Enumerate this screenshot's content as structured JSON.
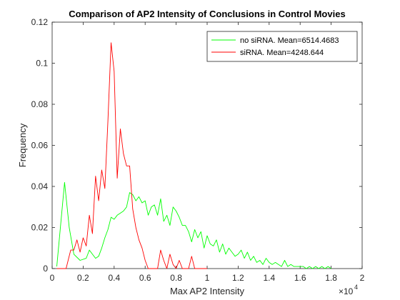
{
  "chart_data": {
    "type": "line",
    "title": "Comparison of AP2 Intensity of Conclusions in Control Movies",
    "xlabel": "Max AP2 Intensity",
    "ylabel": "Frequency",
    "x_multiplier_label": "×10",
    "x_multiplier_exponent": "4",
    "xlim": [
      0,
      2
    ],
    "ylim": [
      0,
      0.12
    ],
    "x_ticks": [
      "0",
      "0.2",
      "0.4",
      "0.6",
      "0.8",
      "1",
      "1.2",
      "1.4",
      "1.6",
      "1.8",
      "2"
    ],
    "y_ticks": [
      "0",
      "0.02",
      "0.04",
      "0.06",
      "0.08",
      "0.1",
      "0.12"
    ],
    "grid": false,
    "legend_position": "top-right",
    "series": [
      {
        "name": "no siRNA. Mean=6514.4683",
        "color": "#00ff00",
        "x": [
          0.03,
          0.08,
          0.11,
          0.14,
          0.18,
          0.22,
          0.24,
          0.26,
          0.28,
          0.3,
          0.32,
          0.34,
          0.36,
          0.38,
          0.4,
          0.42,
          0.44,
          0.46,
          0.48,
          0.5,
          0.52,
          0.54,
          0.56,
          0.58,
          0.6,
          0.62,
          0.64,
          0.66,
          0.68,
          0.7,
          0.72,
          0.74,
          0.76,
          0.78,
          0.8,
          0.82,
          0.84,
          0.86,
          0.88,
          0.9,
          0.92,
          0.94,
          0.96,
          0.98,
          1.0,
          1.02,
          1.04,
          1.06,
          1.08,
          1.1,
          1.12,
          1.14,
          1.16,
          1.18,
          1.2,
          1.22,
          1.24,
          1.26,
          1.28,
          1.3,
          1.32,
          1.34,
          1.36,
          1.38,
          1.4,
          1.42,
          1.44,
          1.46,
          1.48,
          1.5,
          1.52,
          1.54,
          1.56,
          1.58,
          1.6,
          1.62,
          1.64,
          1.66,
          1.68,
          1.7,
          1.72,
          1.74,
          1.76,
          1.78,
          1.8
        ],
        "y": [
          0.001,
          0.042,
          0.02,
          0.007,
          0.004,
          0.005,
          0.009,
          0.007,
          0.005,
          0.006,
          0.01,
          0.015,
          0.019,
          0.025,
          0.024,
          0.026,
          0.027,
          0.028,
          0.03,
          0.037,
          0.036,
          0.033,
          0.035,
          0.032,
          0.033,
          0.026,
          0.03,
          0.031,
          0.026,
          0.034,
          0.023,
          0.026,
          0.021,
          0.03,
          0.028,
          0.025,
          0.021,
          0.021,
          0.018,
          0.013,
          0.019,
          0.015,
          0.018,
          0.01,
          0.016,
          0.012,
          0.011,
          0.014,
          0.008,
          0.012,
          0.007,
          0.01,
          0.008,
          0.006,
          0.007,
          0.009,
          0.005,
          0.008,
          0.004,
          0.006,
          0.003,
          0.004,
          0.002,
          0.005,
          0.003,
          0.002,
          0.003,
          0.002,
          0.001,
          0.004,
          0.001,
          0.002,
          0.001,
          0.001,
          0.001,
          0.001,
          0.0,
          0.001,
          0.0,
          0.001,
          0.0,
          0.001,
          0.0,
          0.001,
          0.0
        ]
      },
      {
        "name": "siRNA. Mean=4248.644",
        "color": "#ff0000",
        "x": [
          0.03,
          0.06,
          0.09,
          0.12,
          0.14,
          0.16,
          0.18,
          0.2,
          0.22,
          0.24,
          0.26,
          0.28,
          0.3,
          0.32,
          0.34,
          0.36,
          0.38,
          0.4,
          0.42,
          0.44,
          0.46,
          0.48,
          0.5,
          0.52,
          0.54,
          0.56,
          0.58,
          0.6,
          0.62,
          0.64,
          0.66,
          0.68,
          0.7,
          0.72,
          0.74,
          0.76,
          0.78,
          0.8,
          0.82,
          0.84,
          0.86,
          0.88,
          0.9,
          0.92,
          0.94,
          0.96,
          0.98,
          1.0
        ],
        "y": [
          0.0,
          0.0,
          0.0,
          0.009,
          0.009,
          0.014,
          0.008,
          0.015,
          0.011,
          0.026,
          0.017,
          0.045,
          0.033,
          0.048,
          0.039,
          0.072,
          0.11,
          0.096,
          0.044,
          0.068,
          0.056,
          0.05,
          0.05,
          0.029,
          0.02,
          0.014,
          0.01,
          0.004,
          0.0,
          0.0,
          0.0,
          0.0,
          0.009,
          0.004,
          0.0,
          0.007,
          0.002,
          0.0,
          0.004,
          0.0,
          0.0,
          0.0,
          0.006,
          0.0,
          0.0,
          0.0,
          0.0,
          0.0
        ]
      }
    ]
  }
}
